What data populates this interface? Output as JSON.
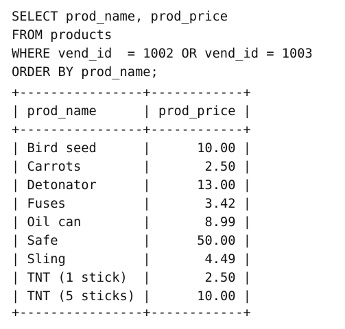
{
  "query": [
    "SELECT prod_name, prod_price",
    "FROM products",
    "WHERE vend_id  = 1002 OR vend_id = 1003",
    "ORDER BY prod_name;"
  ],
  "table": {
    "border": "+----------------+------------+",
    "separator": "|",
    "columns": [
      "prod_name",
      "prod_price"
    ],
    "rows": [
      [
        "Bird seed",
        "10.00"
      ],
      [
        "Carrots",
        "2.50"
      ],
      [
        "Detonator",
        "13.00"
      ],
      [
        "Fuses",
        "3.42"
      ],
      [
        "Oil can",
        "8.99"
      ],
      [
        "Safe",
        "50.00"
      ],
      [
        "Sling",
        "4.49"
      ],
      [
        "TNT (1 stick)",
        "2.50"
      ],
      [
        "TNT (5 sticks)",
        "10.00"
      ]
    ]
  }
}
